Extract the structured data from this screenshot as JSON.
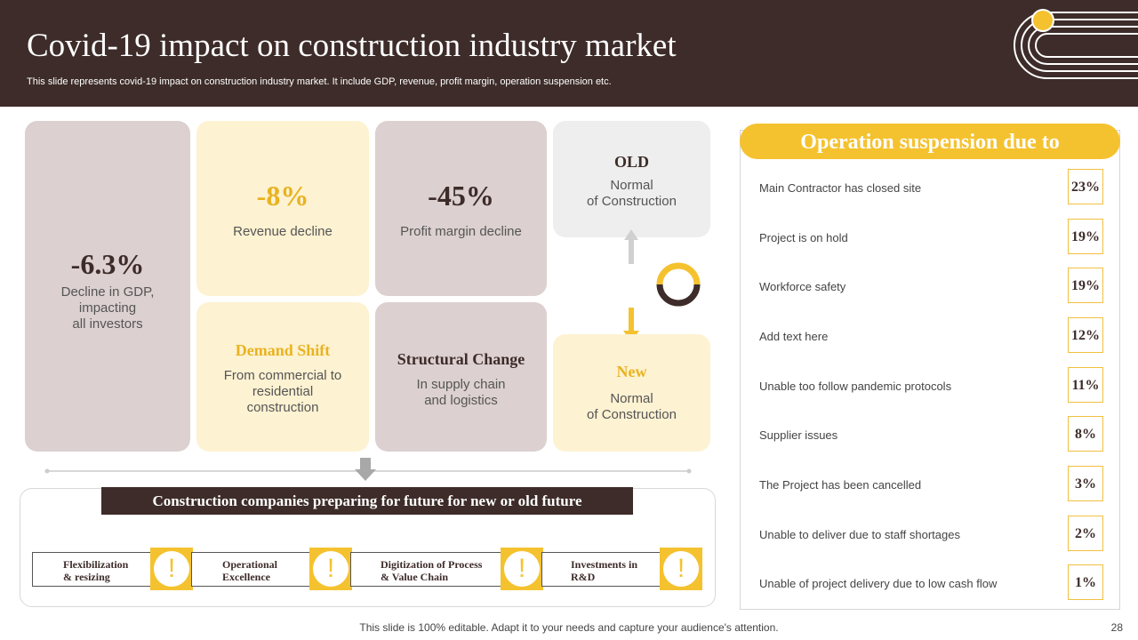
{
  "header": {
    "title": "Covid-19 impact on construction industry market",
    "subtitle": "This slide represents covid-19 impact on construction industry market. It include GDP, revenue, profit margin, operation suspension etc."
  },
  "gdp": {
    "value": "-6.3%",
    "desc": [
      "Decline in GDP,",
      "impacting",
      "all investors"
    ]
  },
  "revenue": {
    "value": "-8%",
    "desc": "Revenue decline"
  },
  "profit": {
    "value": "-45%",
    "desc": "Profit margin decline"
  },
  "demand": {
    "title": "Demand Shift",
    "desc": [
      "From commercial to",
      "residential",
      "construction"
    ]
  },
  "structural": {
    "title": "Structural Change",
    "desc": [
      "In supply chain",
      "and logistics"
    ]
  },
  "old": {
    "title": "OLD",
    "desc": [
      "Normal",
      "of Construction"
    ]
  },
  "new": {
    "title": "New",
    "desc": [
      "Normal",
      "of Construction"
    ]
  },
  "operation": {
    "title": "Operation suspension due to",
    "rows": [
      {
        "label": "Main Contractor has closed site",
        "value": "23%"
      },
      {
        "label": "Project is on hold",
        "value": "19%"
      },
      {
        "label": "Workforce safety",
        "value": "19%"
      },
      {
        "label": "Add text here",
        "value": "12%"
      },
      {
        "label": "Unable  too follow pandemic protocols",
        "value": "11%"
      },
      {
        "label": "Supplier issues",
        "value": "8%"
      },
      {
        "label": "The Project has been cancelled",
        "value": "3%"
      },
      {
        "label": "Unable  to deliver  due to staff shortages",
        "value": "2%"
      },
      {
        "label": "Unable  of project delivery  due to low cash flow",
        "value": "1%"
      }
    ]
  },
  "future": {
    "banner": "Construction companies preparing for future for new or old future",
    "steps": [
      {
        "line1": "Flexibilization",
        "line2": "& resizing"
      },
      {
        "line1": "Operational",
        "line2": "Excellence"
      },
      {
        "line1": "Digitization of Process",
        "line2": "& Value Chain"
      },
      {
        "line1": "Investments in",
        "line2": "R&D"
      }
    ],
    "warn_glyph": "!"
  },
  "footer": {
    "text": "This slide is 100% editable. Adapt it to your needs and capture your audience's attention.",
    "page": "28"
  },
  "colors": {
    "dark": "#3d2c29",
    "yellow": "#f5c22f",
    "tan": "#dcd0d0",
    "cream": "#fdf2d2"
  }
}
